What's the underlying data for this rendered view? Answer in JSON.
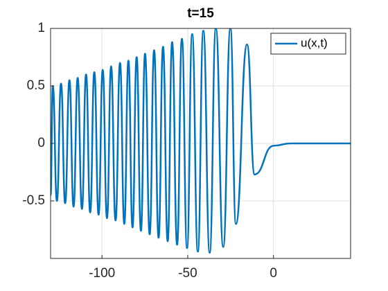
{
  "chart_data": {
    "type": "line",
    "title": "t=15",
    "x": [
      -130,
      -128.7,
      -126.3,
      -123.9,
      -121.5,
      -119,
      -116.6,
      -114.2,
      -111.7,
      -109.3,
      -106.9,
      -104.5,
      -102,
      -99.6,
      -97.1,
      -94.7,
      -92.1,
      -89.5,
      -87,
      -84.6,
      -82.2,
      -79.8,
      -77.3,
      -74.9,
      -72.2,
      -69.6,
      -67,
      -64.4,
      -61.7,
      -59.1,
      -56.2,
      -53.4,
      -50.4,
      -47.4,
      -44.1,
      -40.9,
      -37.2,
      -33.6,
      -29.3,
      -25.1,
      -21.9,
      -15.4,
      -11,
      0,
      10,
      45
    ],
    "series": [
      {
        "name": "u(x,t)",
        "color": "#0072bd",
        "values": [
          -0.45,
          0.5,
          -0.5,
          0.52,
          -0.52,
          0.55,
          -0.55,
          0.57,
          -0.57,
          0.6,
          -0.6,
          0.62,
          -0.62,
          0.64,
          -0.65,
          0.67,
          -0.67,
          0.7,
          -0.7,
          0.72,
          -0.73,
          0.75,
          -0.76,
          0.78,
          -0.79,
          0.81,
          -0.82,
          0.84,
          -0.85,
          0.88,
          -0.88,
          0.91,
          -0.91,
          0.95,
          -0.94,
          0.98,
          -0.95,
          1.0,
          -0.9,
          1.0,
          -0.7,
          0.86,
          -0.27,
          -0.02,
          0,
          0
        ]
      }
    ],
    "xlim": [
      -130,
      45
    ],
    "ylim": [
      -1,
      1
    ],
    "xticks": [
      -100,
      -50,
      0
    ],
    "yticks": [
      -0.5,
      0,
      0.5,
      1
    ],
    "grid": true,
    "legend": "northeast"
  }
}
